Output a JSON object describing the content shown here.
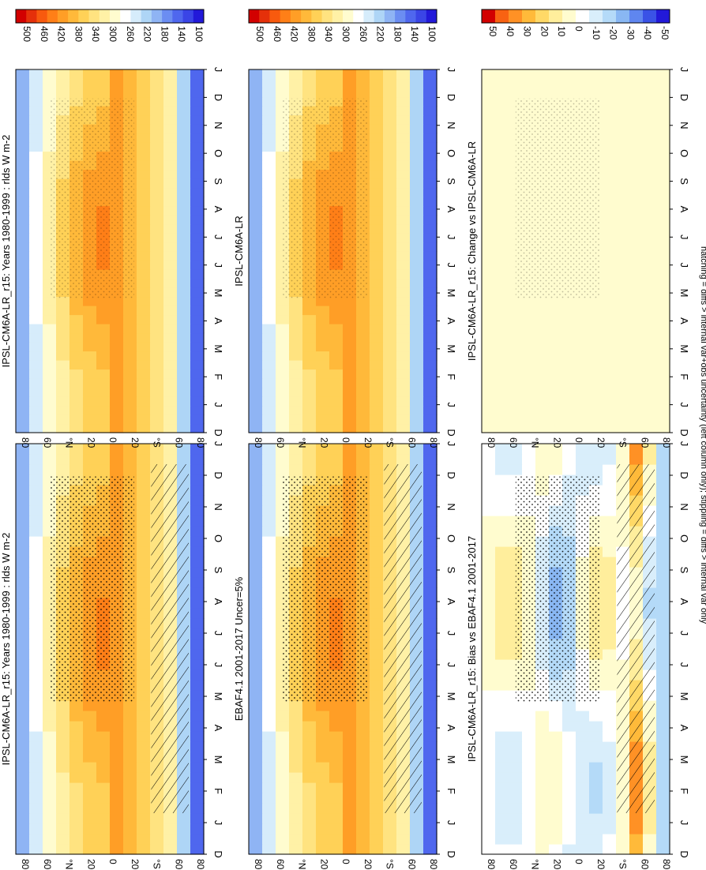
{
  "footer": "hatching = diffs > internal var+obs uncertainty (left column only); stippling = diffs > internal var only",
  "colors": {
    "abs": [
      "#2219d9",
      "#3a45e6",
      "#4f67ee",
      "#6b8df2",
      "#8fb4f4",
      "#aed5f6",
      "#d6ecfb",
      "#ffffff",
      "#fffccf",
      "#fff1a6",
      "#ffe380",
      "#ffd157",
      "#ffb93a",
      "#ff9e26",
      "#ff7f17",
      "#f85a0e",
      "#e5300a",
      "#d20000"
    ],
    "diff": [
      "#2219d9",
      "#3a52e6",
      "#5f86ef",
      "#89b7f3",
      "#b4daf8",
      "#d9eefb",
      "#ffffff",
      "#fffccf",
      "#ffee9c",
      "#ffd967",
      "#ffba3a",
      "#ff9125",
      "#f86212",
      "#d20000"
    ]
  },
  "chart_data": [
    {
      "type": "heatmap",
      "title": "IPSL-CM6A-LR_r15: Years 1980-1999 : rlds W m-2",
      "xlabel": "",
      "ylabel": "",
      "x_ticks": [
        "D",
        "J",
        "F",
        "M",
        "A",
        "M",
        "J",
        "J",
        "A",
        "S",
        "O",
        "N",
        "D",
        "J"
      ],
      "y_ticks": [
        "80",
        "60",
        "°N",
        "20",
        "0",
        "20",
        "°S",
        "60",
        "80"
      ],
      "colorbar_ticks": [
        "500",
        "460",
        "420",
        "380",
        "340",
        "300",
        "260",
        "220",
        "180",
        "140",
        "100"
      ],
      "colorbar_range": [
        80,
        520
      ],
      "overlay": [
        "hatching",
        "stippling"
      ]
    },
    {
      "type": "heatmap",
      "title": "IPSL-CM6A-LR_r15: Years 1980-1999 : rlds W m-2",
      "xlabel": "",
      "ylabel": "",
      "x_ticks": [
        "D",
        "J",
        "F",
        "M",
        "A",
        "M",
        "J",
        "J",
        "A",
        "S",
        "O",
        "N",
        "D",
        "J"
      ],
      "y_ticks": [
        "80",
        "60",
        "°N",
        "20",
        "0",
        "20",
        "°S",
        "60",
        "80"
      ],
      "colorbar_ticks": [
        "500",
        "460",
        "420",
        "380",
        "340",
        "300",
        "260",
        "220",
        "180",
        "140",
        "100"
      ],
      "colorbar_range": [
        80,
        520
      ],
      "overlay": [
        "stippling"
      ]
    },
    {
      "type": "heatmap",
      "title": "EBAF4.1 2001-2017 Uncer=5%",
      "xlabel": "",
      "ylabel": "",
      "x_ticks": [
        "D",
        "J",
        "F",
        "M",
        "A",
        "M",
        "J",
        "J",
        "A",
        "S",
        "O",
        "N",
        "D",
        "J"
      ],
      "y_ticks": [
        "80",
        "60",
        "°N",
        "20",
        "0",
        "20",
        "°S",
        "60",
        "80"
      ],
      "colorbar_ticks": [
        "500",
        "460",
        "420",
        "380",
        "340",
        "300",
        "260",
        "220",
        "180",
        "140",
        "100"
      ],
      "colorbar_range": [
        80,
        520
      ],
      "overlay": [
        "hatching",
        "stippling"
      ]
    },
    {
      "type": "heatmap",
      "title": "IPSL-CM6A-LR",
      "xlabel": "",
      "ylabel": "",
      "x_ticks": [
        "D",
        "J",
        "F",
        "M",
        "A",
        "M",
        "J",
        "J",
        "A",
        "S",
        "O",
        "N",
        "D",
        "J"
      ],
      "y_ticks": [
        "80",
        "60",
        "°N",
        "20",
        "0",
        "20",
        "°S",
        "60",
        "80"
      ],
      "colorbar_ticks": [
        "500",
        "460",
        "420",
        "380",
        "340",
        "300",
        "260",
        "220",
        "180",
        "140",
        "100"
      ],
      "colorbar_range": [
        80,
        520
      ],
      "overlay": [
        "stippling"
      ]
    },
    {
      "type": "heatmap",
      "title": "IPSL-CM6A-LR_r15: Bias vs EBAF4.1 2001-2017",
      "xlabel": "",
      "ylabel": "",
      "x_ticks": [
        "D",
        "J",
        "F",
        "M",
        "A",
        "M",
        "J",
        "J",
        "A",
        "S",
        "O",
        "N",
        "D",
        "J"
      ],
      "y_ticks": [
        "80",
        "60",
        "°N",
        "20",
        "0",
        "20",
        "°S",
        "60",
        "80"
      ],
      "colorbar_ticks": [
        "50",
        "40",
        "30",
        "20",
        "10",
        "0",
        "-10",
        "-20",
        "-30",
        "-40",
        "-50"
      ],
      "colorbar_range": [
        -60,
        60
      ],
      "overlay": [
        "hatching",
        "stippling"
      ]
    },
    {
      "type": "heatmap",
      "title": "IPSL-CM6A-LR_r15: Change vs IPSL-CM6A-LR",
      "xlabel": "",
      "ylabel": "",
      "x_ticks": [
        "D",
        "J",
        "F",
        "M",
        "A",
        "M",
        "J",
        "J",
        "A",
        "S",
        "O",
        "N",
        "D",
        "J"
      ],
      "y_ticks": [
        "80",
        "60",
        "°N",
        "20",
        "0",
        "20",
        "°S",
        "60",
        "80"
      ],
      "colorbar_ticks": [
        "50",
        "40",
        "30",
        "20",
        "10",
        "0",
        "-10",
        "-20",
        "-30",
        "-40",
        "-50"
      ],
      "colorbar_range": [
        -60,
        60
      ],
      "overlay": [
        "stippling"
      ]
    }
  ]
}
